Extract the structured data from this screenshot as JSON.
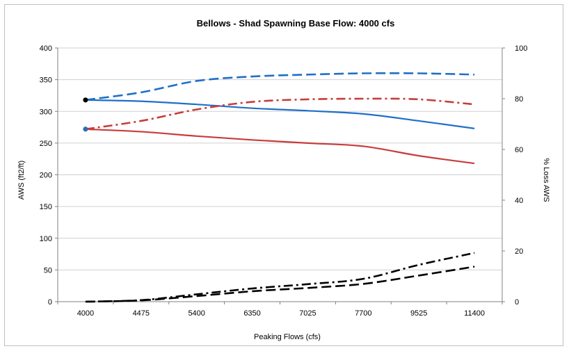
{
  "chart_data": {
    "type": "line",
    "title": "Bellows -  Shad Spawning   Base Flow: 4000 cfs",
    "xlabel": "Peaking Flows (cfs)",
    "ylabel": "AWS (ft2/ft)",
    "y2label": "% Loss AWS",
    "categories": [
      "4000",
      "4475",
      "5400",
      "6350",
      "7025",
      "7700",
      "9525",
      "11400"
    ],
    "ylim": [
      0,
      400
    ],
    "yticks": [
      "0",
      "50",
      "100",
      "150",
      "200",
      "250",
      "300",
      "350",
      "400"
    ],
    "y2lim": [
      0,
      100
    ],
    "y2ticks": [
      "0",
      "20",
      "40",
      "60",
      "80",
      "100"
    ],
    "grid": true,
    "legend": "none",
    "series": [
      {
        "axis": "left",
        "color": "#1f6fc9",
        "dash": "solid",
        "values": [
          318,
          316,
          311,
          305,
          301,
          296,
          285,
          273
        ],
        "marker_first": "#000000"
      },
      {
        "axis": "left",
        "color": "#1f6fc9",
        "dash": "dashed",
        "values": [
          318,
          330,
          348,
          355,
          358,
          360,
          360,
          358
        ],
        "marker_first": "#000000"
      },
      {
        "axis": "left",
        "color": "#c83c3c",
        "dash": "solid",
        "values": [
          272,
          268,
          261,
          255,
          250,
          245,
          230,
          218
        ],
        "marker_first": "#2e6fb0"
      },
      {
        "axis": "left",
        "color": "#c83c3c",
        "dash": "dashdot",
        "values": [
          272,
          285,
          303,
          315,
          319,
          320,
          319,
          311
        ],
        "marker_first": "#2e6fb0"
      },
      {
        "axis": "right",
        "color": "#000000",
        "dash": "dashed",
        "values": [
          0,
          0.5,
          2.2,
          4.1,
          5.4,
          7.0,
          10.3,
          13.8
        ]
      },
      {
        "axis": "right",
        "color": "#000000",
        "dash": "dashdot",
        "values": [
          0,
          0.6,
          2.9,
          5.2,
          6.9,
          9.0,
          14.5,
          19.2
        ]
      }
    ]
  }
}
